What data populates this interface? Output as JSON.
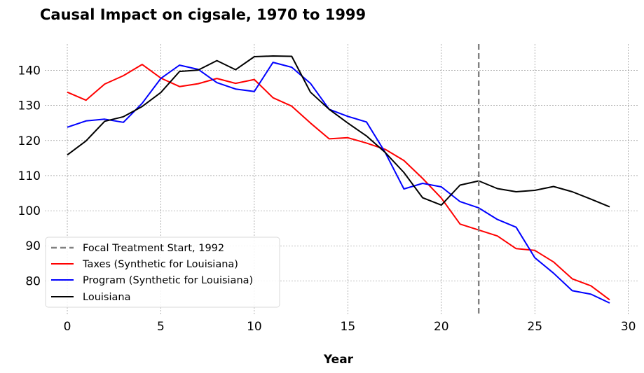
{
  "chart_data": {
    "type": "line",
    "title": "Causal Impact on cigsale, 1970 to 1999",
    "xlabel": "Year",
    "ylabel": "",
    "xlim": [
      -1.2,
      30.5
    ],
    "ylim": [
      70.5,
      147.5
    ],
    "xticks": [
      0,
      5,
      10,
      15,
      20,
      25,
      30
    ],
    "yticks": [
      80,
      90,
      100,
      110,
      120,
      130,
      140
    ],
    "grid": true,
    "legend_position": "lower-left",
    "treatment_line": {
      "x": 22,
      "label": "Focal Treatment Start, 1992",
      "color": "#808080"
    },
    "series": [
      {
        "name": "Taxes (Synthetic for Louisiana)",
        "color": "#ff0000",
        "x": [
          0,
          1,
          2,
          3,
          4,
          5,
          6,
          7,
          8,
          9,
          10,
          11,
          12,
          13,
          14,
          15,
          16,
          17,
          18,
          19,
          20,
          21,
          22,
          23,
          24,
          25,
          26,
          27,
          28,
          29
        ],
        "values": [
          133.8,
          131.5,
          136.1,
          138.5,
          141.7,
          137.8,
          135.4,
          136.2,
          137.7,
          136.3,
          137.4,
          132.2,
          129.8,
          125.0,
          120.5,
          120.8,
          119.3,
          117.5,
          114.3,
          109.2,
          103.6,
          96.2,
          94.5,
          92.8,
          89.2,
          88.7,
          85.4,
          80.6,
          78.6,
          74.6
        ]
      },
      {
        "name": "Program (Synthetic for Louisiana)",
        "color": "#0000ff",
        "x": [
          0,
          1,
          2,
          3,
          4,
          5,
          6,
          7,
          8,
          9,
          10,
          11,
          12,
          13,
          14,
          15,
          16,
          17,
          18,
          19,
          20,
          21,
          22,
          23,
          24,
          25,
          26,
          27,
          28,
          29
        ],
        "values": [
          123.8,
          125.6,
          126.1,
          125.2,
          130.6,
          137.7,
          141.5,
          140.3,
          136.5,
          134.7,
          134.0,
          142.3,
          140.9,
          136.3,
          128.9,
          126.9,
          125.3,
          116.6,
          106.2,
          107.8,
          106.8,
          102.6,
          100.8,
          97.5,
          95.3,
          86.6,
          82.2,
          77.2,
          76.2,
          73.7
        ]
      },
      {
        "name": "Louisiana",
        "color": "#000000",
        "x": [
          0,
          1,
          2,
          3,
          4,
          5,
          6,
          7,
          8,
          9,
          10,
          11,
          12,
          13,
          14,
          15,
          16,
          17,
          18,
          19,
          20,
          21,
          22,
          23,
          24,
          25,
          26,
          27,
          28,
          29
        ],
        "values": [
          115.9,
          119.9,
          125.5,
          126.8,
          129.7,
          133.7,
          139.7,
          140.1,
          142.8,
          140.2,
          143.9,
          144.1,
          144.0,
          133.8,
          128.9,
          125.0,
          121.3,
          116.6,
          110.9,
          103.7,
          101.6,
          107.3,
          108.5,
          106.3,
          105.4,
          105.8,
          106.9,
          105.4,
          103.3,
          101.1
        ]
      }
    ]
  }
}
